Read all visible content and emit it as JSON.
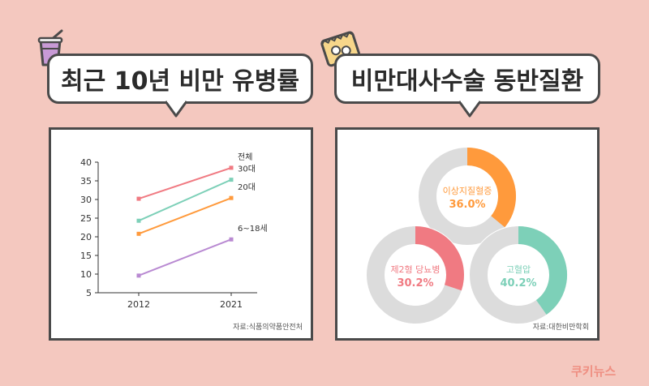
{
  "headers": {
    "left_title": "최근 10년 비만 유병률",
    "right_title": "비만대사수술 동반질환"
  },
  "sources": {
    "left": "자료:식품의약품안전처",
    "right": "자료:대한비만학회"
  },
  "logo": "쿠키뉴스",
  "icons": {
    "left": "drink-cup-icon",
    "right": "snack-bag-icon"
  },
  "colors": {
    "background": "#f4c8bf",
    "total": "#f07a82",
    "age30": "#7dd0b8",
    "age20": "#ff9a3c",
    "age6_18": "#b98ad2",
    "donut_track": "#dcdcdc"
  },
  "chart_data": [
    {
      "type": "line",
      "x": [
        "2012",
        "2021"
      ],
      "ylim": [
        5,
        40
      ],
      "yticks": [
        5,
        10,
        15,
        20,
        25,
        30,
        35,
        40
      ],
      "grid": false,
      "series": [
        {
          "name": "전체",
          "values": [
            30.2,
            38.5
          ],
          "color": "#f07a82"
        },
        {
          "name": "30대",
          "values": [
            24.3,
            35.3
          ],
          "color": "#7dd0b8"
        },
        {
          "name": "20대",
          "values": [
            20.8,
            30.4
          ],
          "color": "#ff9a3c"
        },
        {
          "name": "6~18세",
          "values": [
            9.6,
            19.3
          ],
          "color": "#b98ad2"
        }
      ]
    },
    {
      "type": "pie",
      "donuts": [
        {
          "label": "이상지질혈증",
          "value": 36.0,
          "display": "36.0%",
          "color": "#ff9a3c"
        },
        {
          "label": "제2형 당뇨병",
          "value": 30.2,
          "display": "30.2%",
          "color": "#f07a82"
        },
        {
          "label": "고혈압",
          "value": 40.2,
          "display": "40.2%",
          "color": "#7dd0b8"
        }
      ]
    }
  ]
}
